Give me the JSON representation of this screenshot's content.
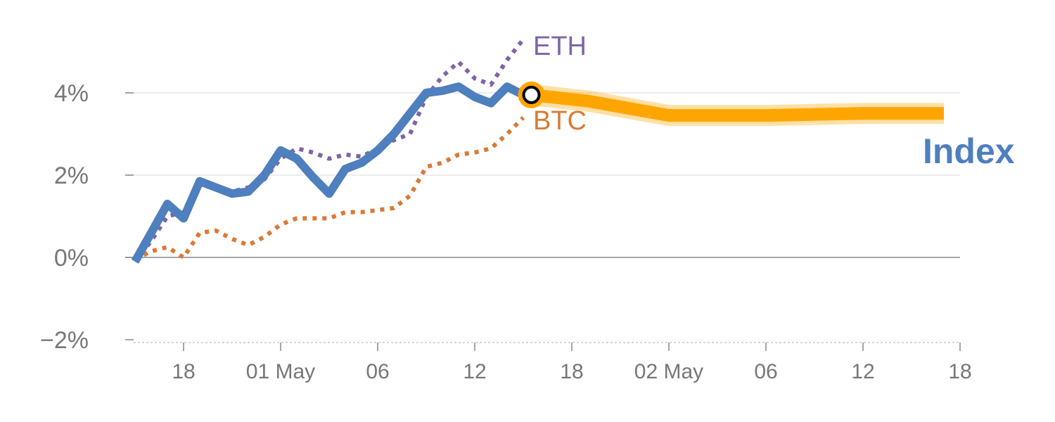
{
  "chart_data": {
    "type": "line",
    "title": "",
    "xlabel": "",
    "ylabel": "",
    "ylim": [
      -2,
      5
    ],
    "y_ticks": [
      "4%",
      "2%",
      "0%",
      "−2%"
    ],
    "y_tick_values": [
      4,
      2,
      0,
      -2
    ],
    "x_ticks": [
      "18",
      "01 May",
      "06",
      "12",
      "18",
      "02 May",
      "06",
      "12",
      "18"
    ],
    "x_tick_positions": [
      4,
      10,
      16,
      22,
      28,
      34,
      40,
      46,
      52
    ],
    "grid": true,
    "series": [
      {
        "name": "Index",
        "style": "solid",
        "color": "#4e7fbf",
        "x": [
          1,
          2,
          3,
          4,
          5,
          6,
          7,
          8,
          9,
          10,
          11,
          12,
          13,
          14,
          15,
          16,
          17,
          18,
          19,
          20,
          21,
          22,
          23,
          24,
          25
        ],
        "values": [
          -0.1,
          0.6,
          1.3,
          0.95,
          1.85,
          1.7,
          1.55,
          1.6,
          2.0,
          2.6,
          2.4,
          1.95,
          1.55,
          2.15,
          2.3,
          2.6,
          3.0,
          3.5,
          4.0,
          4.05,
          4.15,
          3.9,
          3.75,
          4.15,
          3.95
        ]
      },
      {
        "name": "ETH",
        "style": "dotted",
        "color": "#8063a6",
        "x": [
          1,
          2,
          3,
          4,
          5,
          6,
          7,
          8,
          9,
          10,
          11,
          12,
          13,
          14,
          15,
          16,
          17,
          18,
          19,
          20,
          21,
          22,
          23,
          24,
          25
        ],
        "values": [
          -0.1,
          0.4,
          1.0,
          1.1,
          1.9,
          1.75,
          1.6,
          1.7,
          1.9,
          2.4,
          2.65,
          2.55,
          2.4,
          2.5,
          2.45,
          2.65,
          2.85,
          3.0,
          3.9,
          4.4,
          4.75,
          4.35,
          4.2,
          4.8,
          5.3
        ]
      },
      {
        "name": "BTC",
        "style": "dotted",
        "color": "#d97a35",
        "x": [
          1,
          2,
          3,
          4,
          5,
          6,
          7,
          8,
          9,
          10,
          11,
          12,
          13,
          14,
          15,
          16,
          17,
          18,
          19,
          20,
          21,
          22,
          23,
          24,
          25
        ],
        "values": [
          -0.05,
          0.15,
          0.25,
          0.0,
          0.6,
          0.65,
          0.45,
          0.3,
          0.5,
          0.8,
          0.95,
          0.95,
          0.95,
          1.1,
          1.1,
          1.15,
          1.2,
          1.5,
          2.2,
          2.3,
          2.5,
          2.55,
          2.65,
          3.0,
          3.4
        ]
      },
      {
        "name": "forecast",
        "style": "thick",
        "color": "#ffa500",
        "x": [
          25.5,
          29,
          34,
          40,
          46,
          51
        ],
        "values": [
          3.95,
          3.8,
          3.45,
          3.45,
          3.5,
          3.5
        ]
      }
    ],
    "marker": {
      "x": 25.5,
      "y": 3.95,
      "color": "#ffa500"
    },
    "labels": {
      "index": "Index",
      "eth": "ETH",
      "btc": "BTC"
    }
  }
}
